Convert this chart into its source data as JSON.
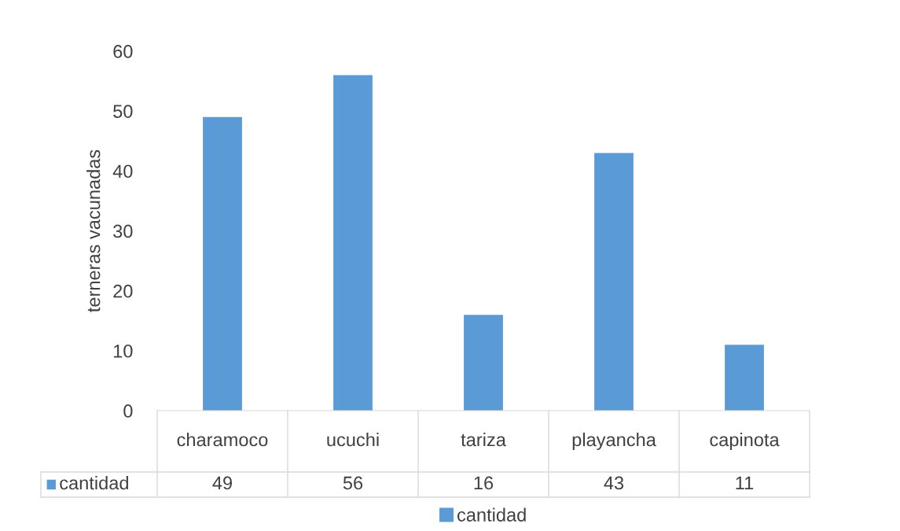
{
  "chart_data": {
    "type": "bar",
    "ylabel": "terneras vacunadas",
    "categories": [
      "charamoco",
      "ucuchi",
      "tariza",
      "playancha",
      "capinota"
    ],
    "series": [
      {
        "name": "cantidad",
        "color": "#5b9bd5",
        "values": [
          49,
          56,
          16,
          43,
          11
        ]
      }
    ],
    "ylim": [
      0,
      60
    ],
    "yticks": [
      0,
      10,
      20,
      30,
      40,
      50,
      60
    ],
    "grid": false,
    "legend": "bottom",
    "data_labels": true
  }
}
